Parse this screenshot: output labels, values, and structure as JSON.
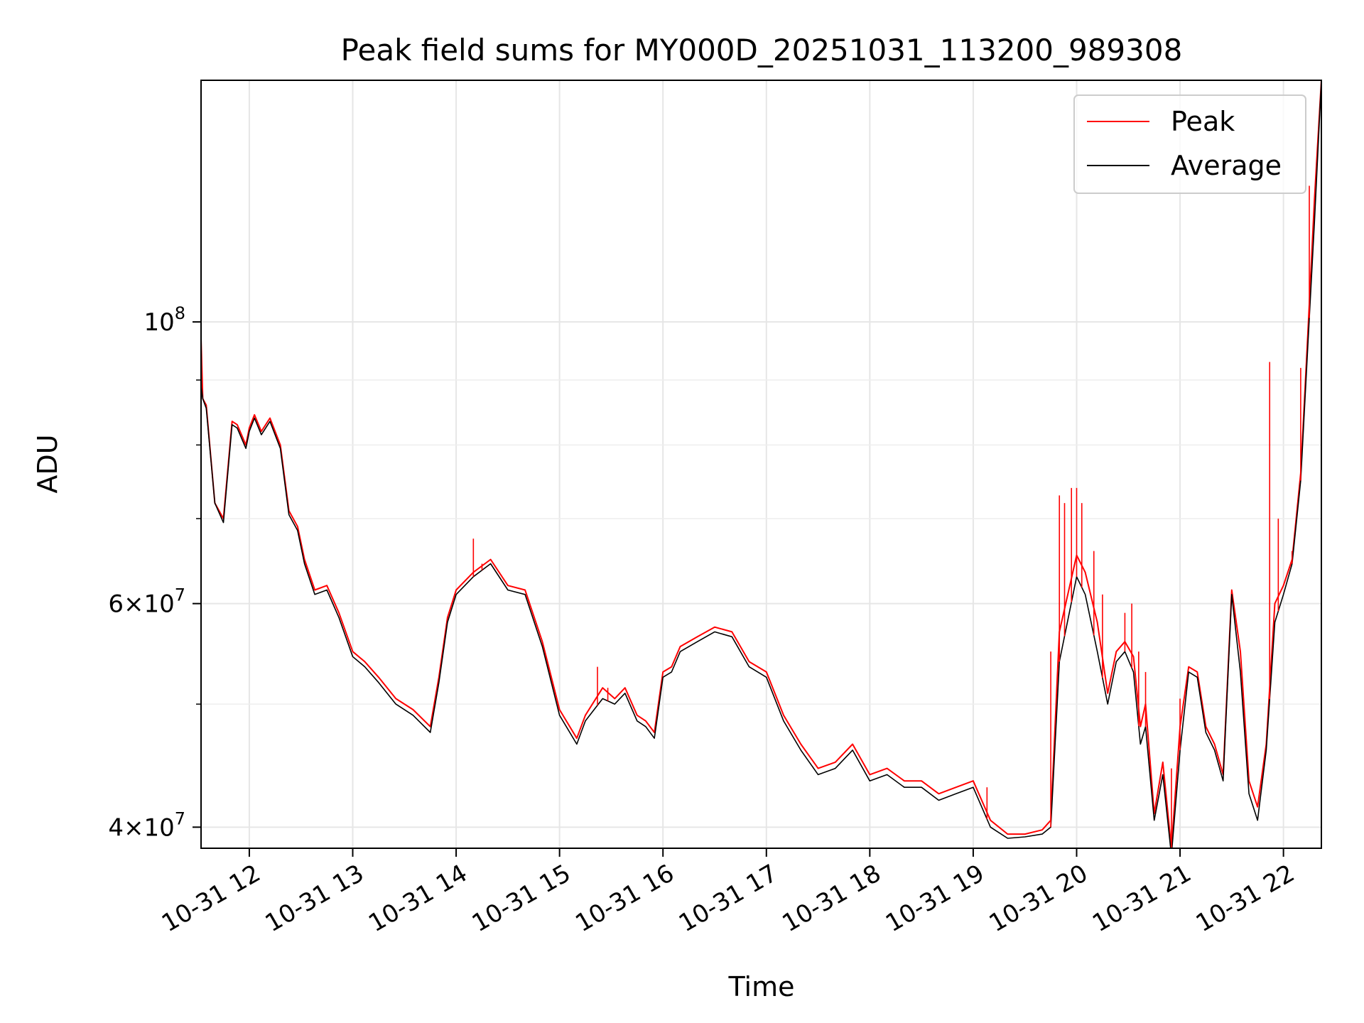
{
  "chart_data": {
    "type": "line",
    "title": "Peak field sums for MY000D_20251031_113200_989308",
    "xlabel": "Time",
    "ylabel": "ADU",
    "yscale": "log",
    "grid": true,
    "legend_position": "upper right",
    "xlim": [
      "2025-10-31 11:32",
      "2025-10-31 22:22"
    ],
    "ylim": [
      38500000,
      155000000
    ],
    "x_ticks": [
      {
        "value": "2025-10-31 12:00",
        "label": "10-31 12"
      },
      {
        "value": "2025-10-31 13:00",
        "label": "10-31 13"
      },
      {
        "value": "2025-10-31 14:00",
        "label": "10-31 14"
      },
      {
        "value": "2025-10-31 15:00",
        "label": "10-31 15"
      },
      {
        "value": "2025-10-31 16:00",
        "label": "10-31 16"
      },
      {
        "value": "2025-10-31 17:00",
        "label": "10-31 17"
      },
      {
        "value": "2025-10-31 18:00",
        "label": "10-31 18"
      },
      {
        "value": "2025-10-31 19:00",
        "label": "10-31 19"
      },
      {
        "value": "2025-10-31 20:00",
        "label": "10-31 20"
      },
      {
        "value": "2025-10-31 21:00",
        "label": "10-31 21"
      },
      {
        "value": "2025-10-31 22:00",
        "label": "10-31 22"
      }
    ],
    "y_major_ticks": [
      {
        "value": 40000000,
        "base": "4",
        "exp": "7"
      },
      {
        "value": 60000000,
        "base": "6",
        "exp": "7"
      },
      {
        "value": 100000000,
        "base": "10",
        "exp": "8"
      }
    ],
    "y_minor_ticks": [
      50000000,
      70000000,
      80000000,
      90000000
    ],
    "series": [
      {
        "name": "Peak",
        "color": "#ff0000",
        "x": [
          "2025-10-31 11:32",
          "2025-10-31 11:33",
          "2025-10-31 11:35",
          "2025-10-31 11:40",
          "2025-10-31 11:45",
          "2025-10-31 11:50",
          "2025-10-31 11:53",
          "2025-10-31 11:58",
          "2025-10-31 12:00",
          "2025-10-31 12:03",
          "2025-10-31 12:07",
          "2025-10-31 12:12",
          "2025-10-31 12:18",
          "2025-10-31 12:23",
          "2025-10-31 12:28",
          "2025-10-31 12:32",
          "2025-10-31 12:38",
          "2025-10-31 12:45",
          "2025-10-31 12:52",
          "2025-10-31 13:00",
          "2025-10-31 13:07",
          "2025-10-31 13:15",
          "2025-10-31 13:25",
          "2025-10-31 13:35",
          "2025-10-31 13:45",
          "2025-10-31 13:50",
          "2025-10-31 13:55",
          "2025-10-31 14:00",
          "2025-10-31 14:10",
          "2025-10-31 14:20",
          "2025-10-31 14:30",
          "2025-10-31 14:40",
          "2025-10-31 14:50",
          "2025-10-31 15:00",
          "2025-10-31 15:10",
          "2025-10-31 15:15",
          "2025-10-31 15:25",
          "2025-10-31 15:32",
          "2025-10-31 15:38",
          "2025-10-31 15:45",
          "2025-10-31 15:50",
          "2025-10-31 15:55",
          "2025-10-31 16:00",
          "2025-10-31 16:05",
          "2025-10-31 16:10",
          "2025-10-31 16:20",
          "2025-10-31 16:30",
          "2025-10-31 16:40",
          "2025-10-31 16:50",
          "2025-10-31 17:00",
          "2025-10-31 17:10",
          "2025-10-31 17:20",
          "2025-10-31 17:30",
          "2025-10-31 17:40",
          "2025-10-31 17:50",
          "2025-10-31 18:00",
          "2025-10-31 18:10",
          "2025-10-31 18:20",
          "2025-10-31 18:30",
          "2025-10-31 18:40",
          "2025-10-31 18:50",
          "2025-10-31 19:00",
          "2025-10-31 19:10",
          "2025-10-31 19:20",
          "2025-10-31 19:30",
          "2025-10-31 19:40",
          "2025-10-31 19:45",
          "2025-10-31 19:50",
          "2025-10-31 20:00",
          "2025-10-31 20:05",
          "2025-10-31 20:12",
          "2025-10-31 20:18",
          "2025-10-31 20:23",
          "2025-10-31 20:28",
          "2025-10-31 20:33",
          "2025-10-31 20:37",
          "2025-10-31 20:40",
          "2025-10-31 20:45",
          "2025-10-31 20:50",
          "2025-10-31 20:55",
          "2025-10-31 21:00",
          "2025-10-31 21:05",
          "2025-10-31 21:10",
          "2025-10-31 21:15",
          "2025-10-31 21:20",
          "2025-10-31 21:25",
          "2025-10-31 21:30",
          "2025-10-31 21:35",
          "2025-10-31 21:40",
          "2025-10-31 21:45",
          "2025-10-31 21:50",
          "2025-10-31 21:55",
          "2025-10-31 22:00",
          "2025-10-31 22:05",
          "2025-10-31 22:10",
          "2025-10-31 22:14",
          "2025-10-31 22:18",
          "2025-10-31 22:22"
        ],
        "y": [
          97000000,
          87000000,
          86000000,
          72000000,
          70000000,
          83500000,
          83000000,
          80000000,
          82500000,
          84500000,
          82000000,
          84000000,
          80000000,
          71000000,
          69000000,
          65000000,
          61500000,
          62000000,
          59000000,
          55000000,
          54000000,
          52500000,
          50500000,
          49500000,
          48000000,
          52500000,
          58500000,
          61500000,
          63500000,
          65000000,
          62000000,
          61500000,
          56000000,
          49500000,
          47000000,
          49000000,
          51500000,
          50500000,
          51500000,
          49000000,
          48500000,
          47500000,
          53000000,
          53500000,
          55500000,
          56500000,
          57500000,
          57000000,
          54000000,
          53000000,
          49000000,
          46500000,
          44500000,
          45000000,
          46500000,
          44000000,
          44500000,
          43500000,
          43500000,
          42500000,
          43000000,
          43500000,
          40500000,
          39500000,
          39500000,
          39800000,
          40500000,
          57000000,
          65500000,
          63500000,
          58000000,
          51000000,
          55000000,
          56000000,
          54500000,
          48000000,
          50000000,
          41000000,
          45000000,
          38500000,
          48000000,
          53500000,
          53000000,
          48000000,
          46500000,
          44000000,
          61500000,
          55000000,
          43500000,
          41500000,
          46500000,
          60000000,
          62000000,
          65000000,
          76000000,
          97000000,
          125000000,
          155000000
        ]
      },
      {
        "name": "Average",
        "color": "#000000",
        "x": [
          "2025-10-31 11:32",
          "2025-10-31 11:33",
          "2025-10-31 11:35",
          "2025-10-31 11:40",
          "2025-10-31 11:45",
          "2025-10-31 11:50",
          "2025-10-31 11:53",
          "2025-10-31 11:58",
          "2025-10-31 12:00",
          "2025-10-31 12:03",
          "2025-10-31 12:07",
          "2025-10-31 12:12",
          "2025-10-31 12:18",
          "2025-10-31 12:23",
          "2025-10-31 12:28",
          "2025-10-31 12:32",
          "2025-10-31 12:38",
          "2025-10-31 12:45",
          "2025-10-31 12:52",
          "2025-10-31 13:00",
          "2025-10-31 13:07",
          "2025-10-31 13:15",
          "2025-10-31 13:25",
          "2025-10-31 13:35",
          "2025-10-31 13:45",
          "2025-10-31 13:50",
          "2025-10-31 13:55",
          "2025-10-31 14:00",
          "2025-10-31 14:10",
          "2025-10-31 14:20",
          "2025-10-31 14:30",
          "2025-10-31 14:40",
          "2025-10-31 14:50",
          "2025-10-31 15:00",
          "2025-10-31 15:10",
          "2025-10-31 15:15",
          "2025-10-31 15:25",
          "2025-10-31 15:32",
          "2025-10-31 15:38",
          "2025-10-31 15:45",
          "2025-10-31 15:50",
          "2025-10-31 15:55",
          "2025-10-31 16:00",
          "2025-10-31 16:05",
          "2025-10-31 16:10",
          "2025-10-31 16:20",
          "2025-10-31 16:30",
          "2025-10-31 16:40",
          "2025-10-31 16:50",
          "2025-10-31 17:00",
          "2025-10-31 17:10",
          "2025-10-31 17:20",
          "2025-10-31 17:30",
          "2025-10-31 17:40",
          "2025-10-31 17:50",
          "2025-10-31 18:00",
          "2025-10-31 18:10",
          "2025-10-31 18:20",
          "2025-10-31 18:30",
          "2025-10-31 18:40",
          "2025-10-31 18:50",
          "2025-10-31 19:00",
          "2025-10-31 19:10",
          "2025-10-31 19:20",
          "2025-10-31 19:30",
          "2025-10-31 19:40",
          "2025-10-31 19:45",
          "2025-10-31 19:50",
          "2025-10-31 20:00",
          "2025-10-31 20:05",
          "2025-10-31 20:12",
          "2025-10-31 20:18",
          "2025-10-31 20:23",
          "2025-10-31 20:28",
          "2025-10-31 20:33",
          "2025-10-31 20:37",
          "2025-10-31 20:40",
          "2025-10-31 20:45",
          "2025-10-31 20:50",
          "2025-10-31 20:55",
          "2025-10-31 21:00",
          "2025-10-31 21:05",
          "2025-10-31 21:10",
          "2025-10-31 21:15",
          "2025-10-31 21:20",
          "2025-10-31 21:25",
          "2025-10-31 21:30",
          "2025-10-31 21:35",
          "2025-10-31 21:40",
          "2025-10-31 21:45",
          "2025-10-31 21:50",
          "2025-10-31 21:55",
          "2025-10-31 22:00",
          "2025-10-31 22:05",
          "2025-10-31 22:10",
          "2025-10-31 22:14",
          "2025-10-31 22:18",
          "2025-10-31 22:22"
        ],
        "y": [
          89000000,
          87000000,
          85500000,
          72000000,
          69500000,
          83000000,
          82500000,
          79500000,
          82000000,
          84000000,
          81500000,
          83500000,
          79500000,
          70500000,
          68500000,
          64500000,
          61000000,
          61500000,
          58500000,
          54500000,
          53500000,
          52000000,
          50000000,
          49000000,
          47500000,
          52000000,
          58000000,
          61000000,
          63000000,
          64500000,
          61500000,
          61000000,
          55500000,
          49000000,
          46500000,
          48500000,
          50500000,
          50000000,
          51000000,
          48500000,
          48000000,
          47000000,
          52500000,
          53000000,
          55000000,
          56000000,
          57000000,
          56500000,
          53500000,
          52500000,
          48500000,
          46000000,
          44000000,
          44500000,
          46000000,
          43500000,
          44000000,
          43000000,
          43000000,
          42000000,
          42500000,
          43000000,
          40000000,
          39200000,
          39300000,
          39500000,
          40000000,
          54000000,
          63000000,
          61000000,
          55000000,
          50000000,
          54000000,
          55000000,
          53000000,
          46500000,
          48000000,
          40500000,
          44000000,
          38000000,
          46000000,
          53000000,
          52500000,
          47500000,
          46000000,
          43500000,
          61000000,
          53000000,
          42500000,
          40500000,
          46000000,
          58000000,
          61000000,
          64500000,
          75000000,
          95000000,
          120000000,
          155000000
        ]
      }
    ],
    "spikes": {
      "series": "Peak",
      "x": [
        "2025-10-31 14:10",
        "2025-10-31 14:15",
        "2025-10-31 15:22",
        "2025-10-31 15:28",
        "2025-10-31 19:08",
        "2025-10-31 19:45",
        "2025-10-31 19:50",
        "2025-10-31 19:53",
        "2025-10-31 19:57",
        "2025-10-31 20:00",
        "2025-10-31 20:03",
        "2025-10-31 20:10",
        "2025-10-31 20:15",
        "2025-10-31 20:28",
        "2025-10-31 20:32",
        "2025-10-31 20:36",
        "2025-10-31 20:40",
        "2025-10-31 20:55",
        "2025-10-31 21:00",
        "2025-10-31 21:52",
        "2025-10-31 21:57",
        "2025-10-31 22:05",
        "2025-10-31 22:10",
        "2025-10-31 22:15",
        "2025-10-31 22:18"
      ],
      "y": [
        67500000,
        64500000,
        53500000,
        51500000,
        43000000,
        55000000,
        73000000,
        72000000,
        74000000,
        74000000,
        72000000,
        66000000,
        61000000,
        59000000,
        60000000,
        55000000,
        53000000,
        44500000,
        50500000,
        93000000,
        70000000,
        66000000,
        92000000,
        128000000,
        120000000
      ]
    }
  }
}
